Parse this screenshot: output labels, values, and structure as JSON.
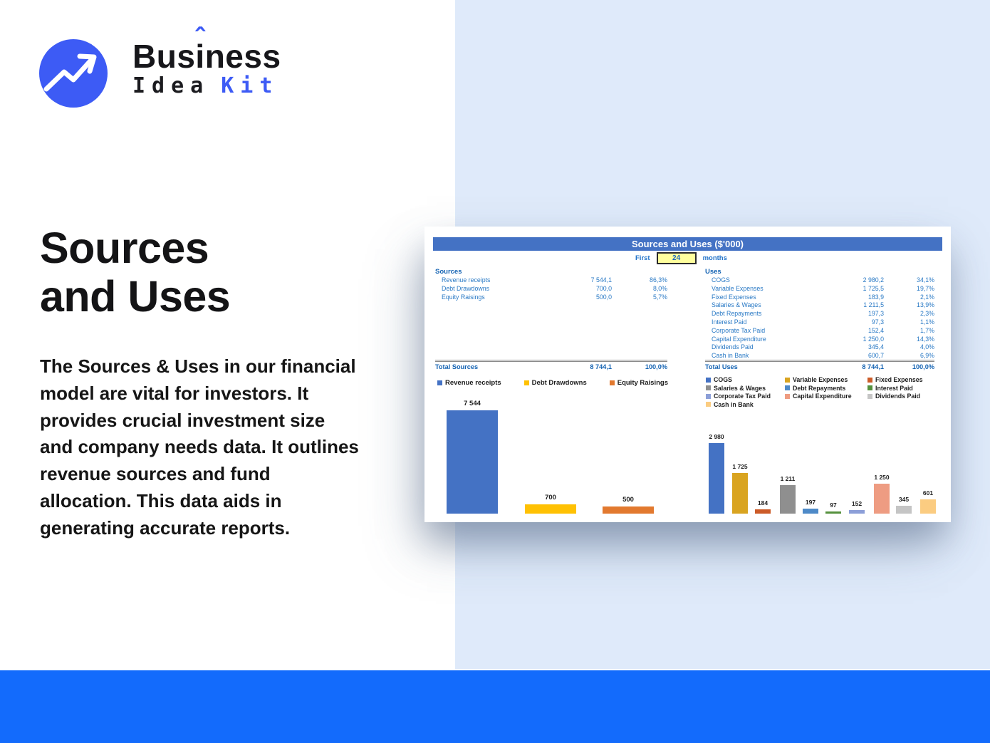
{
  "brand": {
    "pre": "Bus",
    "i": "i",
    "caret": "ˆ",
    "post": "ness",
    "idea": "Idea",
    "kit": "Kit"
  },
  "hero": {
    "title_line1": "Sources",
    "title_line2": "and Uses",
    "description": "The Sources & Uses in our financial model are vital for investors. It provides crucial investment size and company needs data. It outlines revenue sources and fund allocation. This data aids in generating accurate reports."
  },
  "report": {
    "title": "Sources and Uses ($'000)",
    "param": {
      "label_first": "First",
      "value": "24",
      "label_months": "months"
    },
    "sources": {
      "header": "Sources",
      "rows": [
        {
          "label": "Revenue receipts",
          "value": "7 544,1",
          "pct": "86,3%"
        },
        {
          "label": "Debt Drawdowns",
          "value": "700,0",
          "pct": "8,0%"
        },
        {
          "label": "Equity Raisings",
          "value": "500,0",
          "pct": "5,7%"
        }
      ],
      "total": {
        "label": "Total Sources",
        "value": "8 744,1",
        "pct": "100,0%"
      }
    },
    "uses": {
      "header": "Uses",
      "rows": [
        {
          "label": "COGS",
          "value": "2 980,2",
          "pct": "34,1%"
        },
        {
          "label": "Variable Expenses",
          "value": "1 725,5",
          "pct": "19,7%"
        },
        {
          "label": "Fixed Expenses",
          "value": "183,9",
          "pct": "2,1%"
        },
        {
          "label": "Salaries & Wages",
          "value": "1 211,5",
          "pct": "13,9%"
        },
        {
          "label": "Debt Repayments",
          "value": "197,3",
          "pct": "2,3%"
        },
        {
          "label": "Interest Paid",
          "value": "97,3",
          "pct": "1,1%"
        },
        {
          "label": "Corporate Tax Paid",
          "value": "152,4",
          "pct": "1,7%"
        },
        {
          "label": "Capital Expenditure",
          "value": "1 250,0",
          "pct": "14,3%"
        },
        {
          "label": "Dividends Paid",
          "value": "345,4",
          "pct": "4,0%"
        },
        {
          "label": "Cash in Bank",
          "value": "600,7",
          "pct": "6,9%"
        }
      ],
      "total": {
        "label": "Total Uses",
        "value": "8 744,1",
        "pct": "100,0%"
      }
    }
  },
  "chart_data": [
    {
      "type": "bar",
      "title": "Sources",
      "categories": [
        "Revenue receipts",
        "Debt Drawdowns",
        "Equity Raisings"
      ],
      "values": [
        7544,
        700,
        500
      ],
      "labels": [
        "7 544",
        "700",
        "500"
      ],
      "colors": [
        "#4472C4",
        "#FFC103",
        "#E2792F"
      ],
      "legend_position": "top",
      "ylim": [
        0,
        7544
      ],
      "grid": false
    },
    {
      "type": "bar",
      "title": "Uses",
      "categories": [
        "COGS",
        "Variable Expenses",
        "Fixed Expenses",
        "Salaries & Wages",
        "Debt Repayments",
        "Interest Paid",
        "Corporate Tax Paid",
        "Capital Expenditure",
        "Dividends Paid",
        "Cash in Bank"
      ],
      "values": [
        2980,
        1725,
        184,
        1211,
        197,
        97,
        152,
        1250,
        345,
        601
      ],
      "labels": [
        "2 980",
        "1 725",
        "184",
        "1 211",
        "197",
        "97",
        "152",
        "1 250",
        "345",
        "601"
      ],
      "colors": [
        "#4472C4",
        "#D9A420",
        "#CC5B28",
        "#8F8F8F",
        "#4E8AC8",
        "#55913D",
        "#8C9FD8",
        "#EE9C82",
        "#C5C5C5",
        "#FBCC81"
      ],
      "legend_position": "top",
      "ylim": [
        0,
        2980
      ],
      "grid": false
    }
  ],
  "colors": {
    "accent_blue": "#3D5BF5",
    "panel_blue": "#DFEAFA",
    "footer_blue": "#136BFC",
    "sheet_header_blue": "#4472C4",
    "table_text_blue": "#2979C5",
    "input_yellow": "#FFFF9E"
  }
}
